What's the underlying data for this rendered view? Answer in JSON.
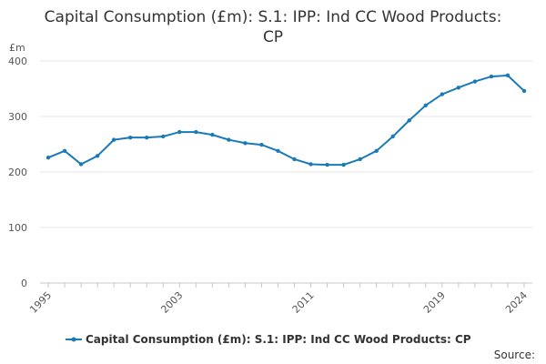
{
  "chart_data": {
    "type": "line",
    "title_line1": "Capital Consumption (£m): S.1: IPP: Ind CC Wood Products:",
    "title_line2": "CP",
    "yunit": "£m",
    "ylim": [
      0,
      400
    ],
    "yticks": [
      0,
      100,
      200,
      300,
      400
    ],
    "xticks": [
      "1995",
      "2003",
      "2011",
      "2019",
      "2024"
    ],
    "grid": true,
    "legend_position": "bottom",
    "series": [
      {
        "name": "Capital Consumption (£m): S.1: IPP: Ind CC Wood Products: CP",
        "color": "#1a7ab8",
        "x": [
          1995,
          1996,
          1997,
          1998,
          1999,
          2000,
          2001,
          2002,
          2003,
          2004,
          2005,
          2006,
          2007,
          2008,
          2009,
          2010,
          2011,
          2012,
          2013,
          2014,
          2015,
          2016,
          2017,
          2018,
          2019,
          2020,
          2021,
          2022,
          2023,
          2024
        ],
        "values": [
          226,
          238,
          214,
          229,
          258,
          262,
          262,
          264,
          272,
          272,
          267,
          258,
          252,
          249,
          238,
          223,
          214,
          213,
          213,
          223,
          238,
          264,
          293,
          320,
          340,
          352,
          363,
          372,
          374,
          346
        ]
      }
    ]
  },
  "source_label": "Source:"
}
